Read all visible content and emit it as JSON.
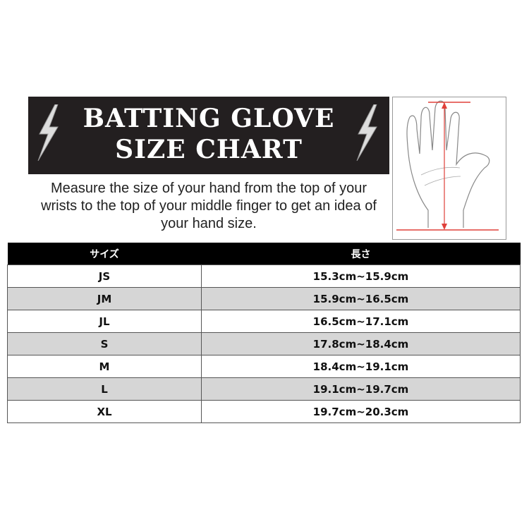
{
  "header": {
    "title_line1": "BATTING GLOVE",
    "title_line2": "SIZE CHART",
    "icon": "lightning-bolt-icon"
  },
  "description": "Measure the size of your hand from the top of your wrists to the top of your middle finger to get an idea of your hand size.",
  "measure_color": "#e0403a",
  "table": {
    "headers": [
      "サイズ",
      "長さ"
    ],
    "rows": [
      {
        "size": "JS",
        "length": "15.3cm~15.9cm"
      },
      {
        "size": "JM",
        "length": "15.9cm~16.5cm"
      },
      {
        "size": "JL",
        "length": "16.5cm~17.1cm"
      },
      {
        "size": "S",
        "length": "17.8cm~18.4cm"
      },
      {
        "size": "M",
        "length": "18.4cm~19.1cm"
      },
      {
        "size": "L",
        "length": "19.1cm~19.7cm"
      },
      {
        "size": "XL",
        "length": "19.7cm~20.3cm"
      }
    ]
  }
}
